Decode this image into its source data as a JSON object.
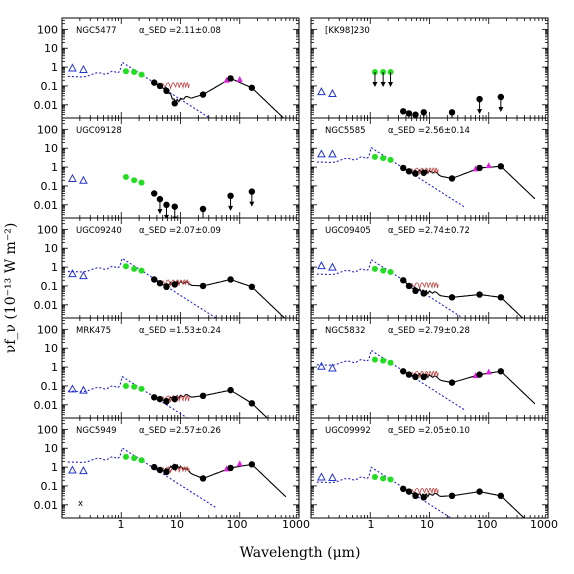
{
  "chart_data": {
    "type": "scatter",
    "x_scale": "log",
    "y_scale": "log",
    "xlim": [
      0.1,
      1000
    ],
    "ylim": [
      0.002,
      400
    ],
    "xlabel": "Wavelength (μm)",
    "ylabel": "νf_ν (10⁻¹³ W m⁻²)",
    "x_tick_labels": [
      "1",
      "10",
      "100",
      "1000"
    ],
    "y_tick_labels": [
      "100",
      "10",
      "1",
      "0.1",
      "0.01"
    ],
    "colors": {
      "stars_line": "#2222cc",
      "uv_triangles": "#2233cc",
      "nir": "#22dd22",
      "iras": "#dd22dd",
      "model": "#000000",
      "pah": "#c04040"
    },
    "panels": [
      {
        "name": "NGC5477",
        "alpha": "α_SED =2.11±0.08",
        "mark": "",
        "uv": [
          [
            0.15,
            0.9
          ],
          [
            0.23,
            0.75
          ]
        ],
        "nir": [
          [
            1.2,
            0.6
          ],
          [
            1.65,
            0.55
          ],
          [
            2.2,
            0.4
          ]
        ],
        "iras": [
          [
            60,
            0.2
          ],
          [
            100,
            0.22
          ]
        ],
        "dots": [
          [
            3.6,
            0.15
          ],
          [
            4.5,
            0.1
          ],
          [
            5.8,
            0.055
          ],
          [
            8,
            0.012
          ],
          [
            24,
            0.035
          ],
          [
            70,
            0.25
          ],
          [
            160,
            0.08
          ]
        ],
        "limits": [],
        "model": true
      },
      {
        "name": "[KK98]230",
        "alpha": "",
        "mark": "",
        "uv": [
          [
            0.15,
            0.05
          ],
          [
            0.23,
            0.04
          ]
        ],
        "nir": [
          [
            1.2,
            0.55
          ],
          [
            1.65,
            0.55
          ],
          [
            2.2,
            0.55
          ]
        ],
        "iras": [],
        "dots": [
          [
            3.6,
            0.0045
          ],
          [
            4.5,
            0.0035
          ],
          [
            5.8,
            0.003
          ],
          [
            8,
            0.004
          ],
          [
            24,
            0.004
          ],
          [
            70,
            0.02
          ],
          [
            160,
            0.026
          ]
        ],
        "limits": [
          [
            1.2,
            0.55
          ],
          [
            1.65,
            0.55
          ],
          [
            2.2,
            0.55
          ],
          [
            4.5,
            0.0035
          ],
          [
            5.8,
            0.003
          ],
          [
            8,
            0.004
          ],
          [
            24,
            0.004
          ],
          [
            70,
            0.02
          ],
          [
            160,
            0.026
          ]
        ],
        "model": false
      },
      {
        "name": "UGC09128",
        "alpha": "",
        "mark": "",
        "uv": [
          [
            0.15,
            0.25
          ],
          [
            0.23,
            0.2
          ]
        ],
        "nir": [
          [
            1.2,
            0.3
          ],
          [
            1.65,
            0.2
          ],
          [
            2.2,
            0.15
          ]
        ],
        "iras": [],
        "dots": [
          [
            3.6,
            0.04
          ],
          [
            4.5,
            0.02
          ],
          [
            5.8,
            0.01
          ],
          [
            8,
            0.008
          ],
          [
            24,
            0.006
          ],
          [
            70,
            0.03
          ],
          [
            160,
            0.05
          ]
        ],
        "limits": [
          [
            4.5,
            0.02
          ],
          [
            5.8,
            0.01
          ],
          [
            8,
            0.008
          ],
          [
            24,
            0.006
          ],
          [
            70,
            0.03
          ],
          [
            160,
            0.05
          ]
        ],
        "model": false
      },
      {
        "name": "NGC5585",
        "alpha": "α_SED =2.56±0.14",
        "mark": "",
        "uv": [
          [
            0.15,
            5
          ],
          [
            0.23,
            5
          ]
        ],
        "nir": [
          [
            1.2,
            3.5
          ],
          [
            1.65,
            3
          ],
          [
            2.2,
            2.4
          ]
        ],
        "iras": [
          [
            60,
            0.8
          ],
          [
            100,
            1.2
          ]
        ],
        "dots": [
          [
            3.6,
            0.9
          ],
          [
            4.5,
            0.6
          ],
          [
            5.8,
            0.45
          ],
          [
            8,
            0.5
          ],
          [
            24,
            0.25
          ],
          [
            70,
            0.9
          ],
          [
            160,
            1.1
          ]
        ],
        "limits": [],
        "model": true
      },
      {
        "name": "UGC09240",
        "alpha": "α_SED =2.07±0.09",
        "mark": "",
        "uv": [
          [
            0.15,
            0.45
          ],
          [
            0.23,
            0.35
          ]
        ],
        "nir": [
          [
            1.2,
            1.1
          ],
          [
            1.65,
            0.8
          ],
          [
            2.2,
            0.65
          ]
        ],
        "iras": [],
        "dots": [
          [
            3.6,
            0.22
          ],
          [
            4.5,
            0.14
          ],
          [
            5.8,
            0.09
          ],
          [
            8,
            0.12
          ],
          [
            24,
            0.1
          ],
          [
            70,
            0.22
          ],
          [
            160,
            0.09
          ]
        ],
        "limits": [],
        "model": true
      },
      {
        "name": "UGC09405",
        "alpha": "α_SED =2.74±0.72",
        "mark": "",
        "uv": [
          [
            0.15,
            1.2
          ],
          [
            0.23,
            1
          ]
        ],
        "nir": [
          [
            1.2,
            0.8
          ],
          [
            1.65,
            0.65
          ],
          [
            2.2,
            0.55
          ]
        ],
        "iras": [],
        "dots": [
          [
            3.6,
            0.2
          ],
          [
            4.5,
            0.1
          ],
          [
            5.8,
            0.055
          ],
          [
            8,
            0.04
          ],
          [
            24,
            0.025
          ],
          [
            70,
            0.035
          ],
          [
            160,
            0.025
          ]
        ],
        "limits": [],
        "model": true
      },
      {
        "name": "MRK475",
        "alpha": "α_SED =1.53±0.24",
        "mark": "",
        "uv": [
          [
            0.15,
            0.07
          ],
          [
            0.23,
            0.06
          ]
        ],
        "nir": [
          [
            1.2,
            0.1
          ],
          [
            1.65,
            0.09
          ],
          [
            2.2,
            0.07
          ]
        ],
        "iras": [],
        "dots": [
          [
            3.6,
            0.025
          ],
          [
            4.5,
            0.02
          ],
          [
            5.8,
            0.015
          ],
          [
            8,
            0.02
          ],
          [
            24,
            0.03
          ],
          [
            70,
            0.06
          ],
          [
            160,
            0.012
          ]
        ],
        "limits": [],
        "model": true
      },
      {
        "name": "NGC5832",
        "alpha": "α_SED =2.79±0.28",
        "mark": "",
        "uv": [
          [
            0.15,
            1.1
          ],
          [
            0.23,
            0.9
          ]
        ],
        "nir": [
          [
            1.2,
            2.5
          ],
          [
            1.65,
            2.2
          ],
          [
            2.2,
            1.7
          ]
        ],
        "iras": [
          [
            60,
            0.35
          ],
          [
            100,
            0.55
          ]
        ],
        "dots": [
          [
            3.6,
            0.6
          ],
          [
            4.5,
            0.4
          ],
          [
            5.8,
            0.3
          ],
          [
            8,
            0.3
          ],
          [
            24,
            0.15
          ],
          [
            70,
            0.4
          ],
          [
            160,
            0.6
          ]
        ],
        "limits": [],
        "model": true
      },
      {
        "name": "NGC5949",
        "alpha": "α_SED =2.57±0.26",
        "mark": "x",
        "uv": [
          [
            0.15,
            0.7
          ],
          [
            0.23,
            0.65
          ]
        ],
        "nir": [
          [
            1.2,
            3.5
          ],
          [
            1.65,
            3
          ],
          [
            2.2,
            2.3
          ]
        ],
        "iras": [
          [
            60,
            0.8
          ],
          [
            100,
            1.5
          ]
        ],
        "dots": [
          [
            3.6,
            1
          ],
          [
            4.5,
            0.7
          ],
          [
            5.8,
            0.55
          ],
          [
            8,
            1
          ],
          [
            24,
            0.25
          ],
          [
            70,
            0.9
          ],
          [
            160,
            1.4
          ]
        ],
        "limits": [],
        "model": true
      },
      {
        "name": "UGC09992",
        "alpha": "α_SED =2.05±0.10",
        "mark": "",
        "uv": [
          [
            0.15,
            0.3
          ],
          [
            0.23,
            0.28
          ]
        ],
        "nir": [
          [
            1.2,
            0.3
          ],
          [
            1.65,
            0.25
          ],
          [
            2.2,
            0.22
          ]
        ],
        "iras": [],
        "dots": [
          [
            3.6,
            0.07
          ],
          [
            4.5,
            0.05
          ],
          [
            5.8,
            0.03
          ],
          [
            8,
            0.025
          ],
          [
            24,
            0.03
          ],
          [
            70,
            0.05
          ],
          [
            160,
            0.03
          ]
        ],
        "limits": [],
        "model": true
      }
    ]
  }
}
